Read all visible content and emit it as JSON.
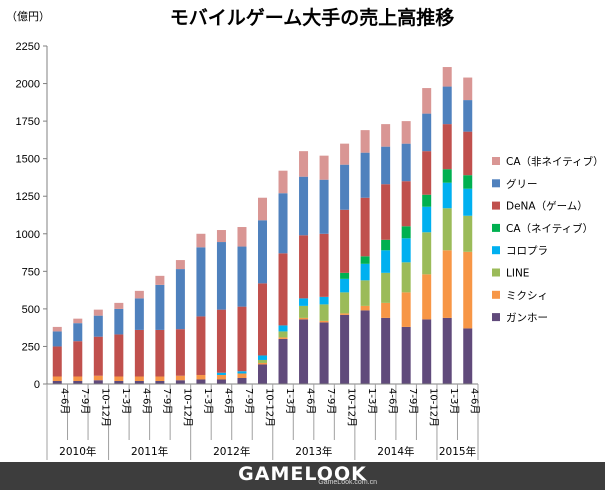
{
  "chart_data": {
    "type": "bar",
    "stacked": true,
    "title": "モバイルゲーム大手の売上高推移",
    "unit_label": "（億円）",
    "ylim": [
      0,
      2250
    ],
    "yticks": [
      0,
      250,
      500,
      750,
      1000,
      1250,
      1500,
      1750,
      2000,
      2250
    ],
    "grid": false,
    "legend_position": "right",
    "categories": [
      "4-6月",
      "7-9月",
      "10-12月",
      "1-3月",
      "4-6月",
      "7-9月",
      "10-12月",
      "1-3月",
      "4-6月",
      "7-9月",
      "10-12月",
      "1-3月",
      "4-6月",
      "7-9月",
      "10-12月",
      "1-3月",
      "4-6月",
      "7-9月",
      "10-12月",
      "1-3月",
      "4-6月"
    ],
    "year_groups": [
      {
        "label": "2010年",
        "count": 3
      },
      {
        "label": "2011年",
        "count": 4
      },
      {
        "label": "2012年",
        "count": 4
      },
      {
        "label": "2013年",
        "count": 4
      },
      {
        "label": "2014年",
        "count": 4
      },
      {
        "label": "2015年",
        "count": 2
      }
    ],
    "series": [
      {
        "name": "ガンホー",
        "color": "#604a7b",
        "values": [
          20,
          20,
          25,
          20,
          20,
          20,
          25,
          30,
          30,
          40,
          130,
          300,
          430,
          410,
          460,
          490,
          440,
          380,
          430,
          440,
          370
        ]
      },
      {
        "name": "ミクシィ",
        "color": "#f79646",
        "values": [
          30,
          30,
          30,
          30,
          30,
          30,
          30,
          30,
          30,
          30,
          10,
          10,
          10,
          10,
          10,
          30,
          100,
          230,
          300,
          450,
          510
        ]
      },
      {
        "name": "LINE",
        "color": "#9bbb59",
        "values": [
          0,
          0,
          0,
          0,
          0,
          0,
          0,
          0,
          0,
          0,
          20,
          40,
          80,
          110,
          140,
          170,
          200,
          200,
          280,
          280,
          240
        ]
      },
      {
        "name": "コロプラ",
        "color": "#00b0f0",
        "values": [
          0,
          0,
          0,
          0,
          0,
          0,
          0,
          0,
          15,
          15,
          30,
          40,
          50,
          50,
          90,
          110,
          150,
          160,
          170,
          170,
          180
        ]
      },
      {
        "name": "CA（ネイティブ）",
        "color": "#00b050",
        "values": [
          0,
          0,
          0,
          0,
          0,
          0,
          0,
          0,
          0,
          0,
          0,
          0,
          0,
          0,
          40,
          50,
          70,
          80,
          80,
          90,
          90
        ]
      },
      {
        "name": "DeNA（ゲーム）",
        "color": "#c0504d",
        "values": [
          200,
          235,
          260,
          280,
          310,
          310,
          310,
          390,
          420,
          430,
          480,
          480,
          420,
          420,
          420,
          390,
          370,
          300,
          290,
          300,
          290
        ]
      },
      {
        "name": "グリー",
        "color": "#4f81bd",
        "values": [
          100,
          120,
          140,
          170,
          210,
          300,
          400,
          460,
          450,
          400,
          420,
          400,
          390,
          360,
          300,
          300,
          250,
          250,
          250,
          250,
          210
        ]
      },
      {
        "name": "CA（非ネイティブ）",
        "color": "#d99694",
        "values": [
          30,
          30,
          40,
          40,
          50,
          60,
          60,
          90,
          80,
          130,
          150,
          150,
          170,
          160,
          140,
          150,
          150,
          150,
          170,
          130,
          150
        ]
      }
    ]
  },
  "footer": {
    "logo_text": "GAMELOOK",
    "site_text": "GameLook.com.cn"
  }
}
